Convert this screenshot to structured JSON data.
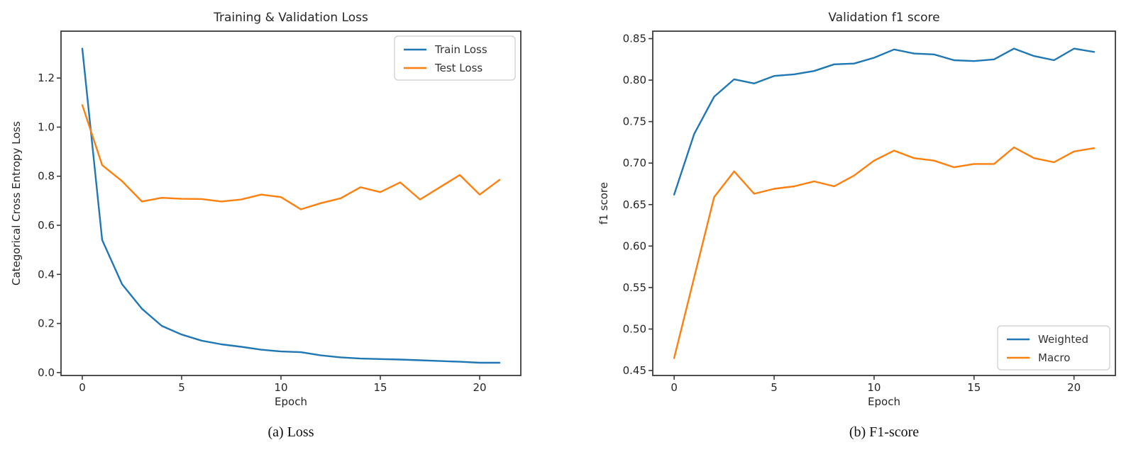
{
  "page": {
    "background": "#ffffff"
  },
  "colors": {
    "axis": "#3a3a3a",
    "title_text": "#262626",
    "tick_text": "#262626",
    "legend_border": "#cccccc",
    "legend_background": "#ffffff",
    "series_blue": "#1f77b4",
    "series_orange": "#ff7f0e"
  },
  "chart_data": [
    {
      "type": "line",
      "title": "Training & Validation Loss",
      "xlabel": "Epoch",
      "ylabel": "Categorical Cross Entropy Loss",
      "caption": "(a) Loss",
      "grid": false,
      "legend_position": "top-right",
      "x": [
        0,
        1,
        2,
        3,
        4,
        5,
        6,
        7,
        8,
        9,
        10,
        11,
        12,
        13,
        14,
        15,
        16,
        17,
        18,
        19,
        20,
        21
      ],
      "xlim": [
        -1.07,
        22.07
      ],
      "ylim": [
        -0.012,
        1.391
      ],
      "xticks": [
        0,
        5,
        10,
        15,
        20
      ],
      "xtick_labels": [
        "0",
        "5",
        "10",
        "15",
        "20"
      ],
      "yticks": [
        0.0,
        0.2,
        0.4,
        0.6,
        0.8,
        1.0,
        1.2
      ],
      "ytick_labels": [
        "0.0",
        "0.2",
        "0.4",
        "0.6",
        "0.8",
        "1.0",
        "1.2"
      ],
      "series": [
        {
          "name": "Train Loss",
          "color": "#1f77b4",
          "values": [
            1.32,
            0.54,
            0.36,
            0.26,
            0.19,
            0.155,
            0.13,
            0.115,
            0.105,
            0.093,
            0.086,
            0.083,
            0.07,
            0.062,
            0.057,
            0.055,
            0.053,
            0.05,
            0.047,
            0.044,
            0.04,
            0.04
          ]
        },
        {
          "name": "Test Loss",
          "color": "#ff7f0e",
          "values": [
            1.09,
            0.845,
            0.78,
            0.697,
            0.712,
            0.708,
            0.707,
            0.697,
            0.705,
            0.725,
            0.715,
            0.665,
            0.69,
            0.71,
            0.755,
            0.735,
            0.775,
            0.705,
            0.755,
            0.805,
            0.725,
            0.785
          ]
        }
      ]
    },
    {
      "type": "line",
      "title": "Validation f1 score",
      "xlabel": "Epoch",
      "ylabel": "f1 score",
      "caption": "(b) F1-score",
      "grid": false,
      "legend_position": "bottom-right",
      "x": [
        0,
        1,
        2,
        3,
        4,
        5,
        6,
        7,
        8,
        9,
        10,
        11,
        12,
        13,
        14,
        15,
        16,
        17,
        18,
        19,
        20,
        21
      ],
      "xlim": [
        -1.07,
        22.07
      ],
      "ylim": [
        0.444,
        0.859
      ],
      "xticks": [
        0,
        5,
        10,
        15,
        20
      ],
      "xtick_labels": [
        "0",
        "5",
        "10",
        "15",
        "20"
      ],
      "yticks": [
        0.45,
        0.5,
        0.55,
        0.6,
        0.65,
        0.7,
        0.75,
        0.8,
        0.85
      ],
      "ytick_labels": [
        "0.45",
        "0.50",
        "0.55",
        "0.60",
        "0.65",
        "0.70",
        "0.75",
        "0.80",
        "0.85"
      ],
      "series": [
        {
          "name": "Weighted",
          "color": "#1f77b4",
          "values": [
            0.662,
            0.735,
            0.78,
            0.801,
            0.796,
            0.805,
            0.807,
            0.811,
            0.819,
            0.82,
            0.827,
            0.837,
            0.832,
            0.831,
            0.824,
            0.823,
            0.825,
            0.838,
            0.829,
            0.824,
            0.838,
            0.834
          ]
        },
        {
          "name": "Macro",
          "color": "#ff7f0e",
          "values": [
            0.465,
            0.562,
            0.659,
            0.69,
            0.663,
            0.669,
            0.672,
            0.678,
            0.672,
            0.685,
            0.703,
            0.715,
            0.706,
            0.703,
            0.695,
            0.699,
            0.699,
            0.719,
            0.706,
            0.701,
            0.714,
            0.718
          ]
        }
      ]
    }
  ]
}
